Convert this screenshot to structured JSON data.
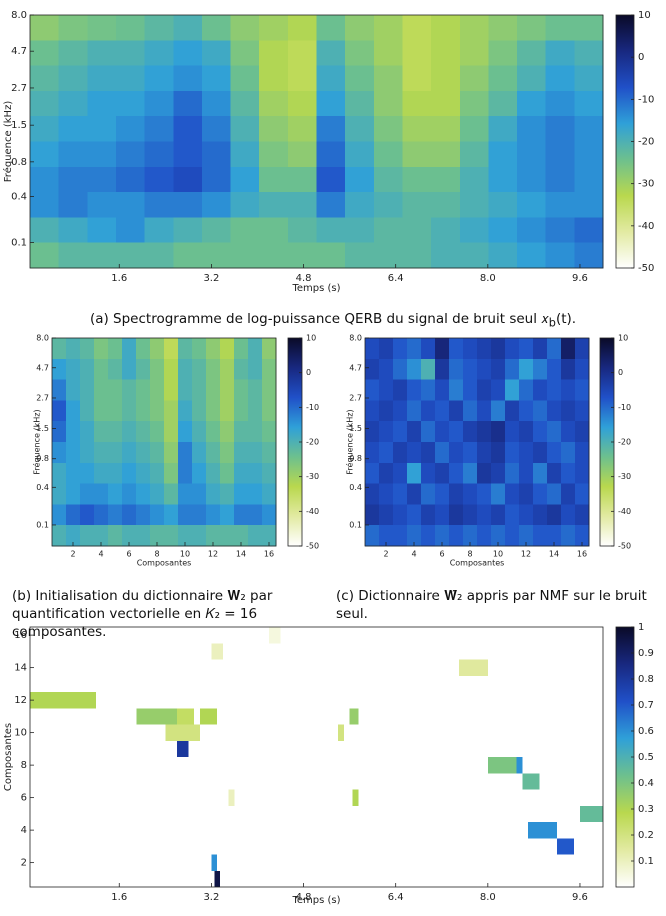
{
  "chart_data": [
    {
      "type": "heatmap",
      "xlabel": "Temps (s)",
      "ylabel": "Fréquence (kHz)",
      "yscale": "erb",
      "xlim": [
        0.05,
        10.0
      ],
      "ylim": [
        0,
        8
      ],
      "xticks": [
        1.6,
        3.2,
        4.8,
        6.4,
        {
          "value": 8,
          "label": "8.0"
        },
        9.6
      ],
      "yticks": [
        0.1,
        0.4,
        0.8,
        1.5,
        2.7,
        4.7,
        {
          "value": 8,
          "label": "8.0"
        }
      ],
      "clim": [
        -50,
        10
      ],
      "cticks": [
        10,
        0,
        -10,
        -20,
        -30,
        -40,
        -50
      ],
      "colormap": [
        "#ffffff",
        "#e2eaa2",
        "#b9d84e",
        "#6dc08e",
        "#2fa0d8",
        "#2050c8",
        "#182880",
        "#0a0a28"
      ],
      "caption": "(a) Spectrogramme de log-puissance QERB du signal de bruit seul 𝑥",
      "caption_sub": "b",
      "caption_tail": "(t).",
      "z": [
        [
          -28,
          -26,
          -25,
          -24,
          -22,
          -20,
          -24,
          -28,
          -30,
          -32,
          -24,
          -28,
          -30,
          -34,
          -32,
          -30,
          -28,
          -26,
          -24,
          -24
        ],
        [
          -24,
          -22,
          -20,
          -20,
          -18,
          -16,
          -18,
          -26,
          -32,
          -34,
          -20,
          -26,
          -30,
          -34,
          -32,
          -30,
          -26,
          -22,
          -18,
          -20
        ],
        [
          -22,
          -20,
          -18,
          -18,
          -16,
          -14,
          -16,
          -24,
          -32,
          -34,
          -18,
          -24,
          -28,
          -34,
          -32,
          -28,
          -24,
          -20,
          -16,
          -18
        ],
        [
          -20,
          -18,
          -16,
          -16,
          -14,
          -10,
          -14,
          -22,
          -30,
          -32,
          -16,
          -22,
          -28,
          -32,
          -32,
          -26,
          -22,
          -16,
          -14,
          -16
        ],
        [
          -18,
          -16,
          -16,
          -14,
          -12,
          -8,
          -12,
          -20,
          -28,
          -30,
          -12,
          -20,
          -26,
          -30,
          -30,
          -24,
          -18,
          -14,
          -12,
          -14
        ],
        [
          -16,
          -14,
          -14,
          -12,
          -10,
          -8,
          -10,
          -18,
          -26,
          -28,
          -10,
          -18,
          -24,
          -28,
          -28,
          -22,
          -16,
          -14,
          -12,
          -14
        ],
        [
          -14,
          -12,
          -12,
          -10,
          -8,
          -6,
          -10,
          -16,
          -24,
          -24,
          -8,
          -16,
          -22,
          -24,
          -24,
          -20,
          -16,
          -14,
          -12,
          -14
        ],
        [
          -14,
          -12,
          -14,
          -14,
          -12,
          -12,
          -14,
          -18,
          -20,
          -20,
          -12,
          -18,
          -20,
          -22,
          -22,
          -20,
          -18,
          -16,
          -14,
          -14
        ],
        [
          -20,
          -18,
          -16,
          -14,
          -18,
          -20,
          -22,
          -24,
          -24,
          -22,
          -20,
          -20,
          -22,
          -22,
          -20,
          -18,
          -16,
          -14,
          -12,
          -10
        ],
        [
          -24,
          -22,
          -22,
          -22,
          -22,
          -24,
          -24,
          -24,
          -24,
          -24,
          -24,
          -22,
          -22,
          -22,
          -20,
          -20,
          -18,
          -16,
          -14,
          -12
        ]
      ]
    },
    {
      "type": "heatmap",
      "xlabel": "Composantes",
      "ylabel": "Fréquence (kHz)",
      "yscale": "erb",
      "xlim": [
        0.5,
        16.5
      ],
      "ylim": [
        0,
        8
      ],
      "xticks": [
        2,
        4,
        6,
        8,
        10,
        12,
        14,
        16
      ],
      "yticks": [
        0.1,
        0.4,
        0.8,
        1.5,
        2.7,
        4.7,
        {
          "value": 8,
          "label": "8.0"
        }
      ],
      "clim": [
        -50,
        10
      ],
      "cticks": [
        10,
        0,
        -10,
        -20,
        -30,
        -40,
        -50
      ],
      "colormap": [
        "#ffffff",
        "#e2eaa2",
        "#b9d84e",
        "#6dc08e",
        "#2fa0d8",
        "#2050c8",
        "#182880",
        "#0a0a28"
      ],
      "caption": "(b) Initialisation du dictionnaire 𝐖₂ par quantification vectorielle en 𝐾₂ = 16 composantes.",
      "z": [
        [
          -22,
          -20,
          -22,
          -26,
          -24,
          -18,
          -24,
          -28,
          -34,
          -22,
          -24,
          -28,
          -32,
          -24,
          -20,
          -28
        ],
        [
          -16,
          -18,
          -20,
          -24,
          -22,
          -18,
          -22,
          -26,
          -32,
          -20,
          -22,
          -26,
          -30,
          -22,
          -20,
          -26
        ],
        [
          -12,
          -18,
          -20,
          -24,
          -24,
          -22,
          -24,
          -26,
          -32,
          -20,
          -22,
          -26,
          -30,
          -24,
          -22,
          -26
        ],
        [
          -8,
          -16,
          -20,
          -24,
          -24,
          -22,
          -24,
          -26,
          -30,
          -18,
          -22,
          -26,
          -30,
          -24,
          -22,
          -26
        ],
        [
          -10,
          -16,
          -18,
          -22,
          -22,
          -20,
          -22,
          -24,
          -30,
          -16,
          -20,
          -24,
          -28,
          -22,
          -22,
          -24
        ],
        [
          -14,
          -16,
          -18,
          -20,
          -20,
          -18,
          -20,
          -22,
          -28,
          -12,
          -18,
          -22,
          -26,
          -20,
          -20,
          -22
        ],
        [
          -18,
          -16,
          -16,
          -18,
          -18,
          -16,
          -18,
          -20,
          -26,
          -12,
          -16,
          -20,
          -24,
          -18,
          -18,
          -20
        ],
        [
          -18,
          -16,
          -14,
          -14,
          -16,
          -14,
          -16,
          -18,
          -22,
          -14,
          -14,
          -18,
          -20,
          -16,
          -16,
          -18
        ],
        [
          -14,
          -10,
          -8,
          -10,
          -12,
          -10,
          -12,
          -14,
          -16,
          -12,
          -12,
          -14,
          -16,
          -12,
          -12,
          -14
        ],
        [
          -20,
          -18,
          -20,
          -20,
          -22,
          -20,
          -20,
          -22,
          -22,
          -20,
          -20,
          -22,
          -22,
          -22,
          -20,
          -20
        ]
      ]
    },
    {
      "type": "heatmap",
      "xlabel": "Composantes",
      "ylabel": "Fréquence (kHz)",
      "yscale": "erb",
      "xlim": [
        0.5,
        16.5
      ],
      "ylim": [
        0,
        8
      ],
      "xticks": [
        2,
        4,
        6,
        8,
        10,
        12,
        14,
        16
      ],
      "yticks": [
        0.1,
        0.4,
        0.8,
        1.5,
        2.7,
        4.7,
        {
          "value": 8,
          "label": "8.0"
        }
      ],
      "clim": [
        -50,
        10
      ],
      "cticks": [
        10,
        0,
        -10,
        -20,
        -30,
        -40,
        -50
      ],
      "colormap": [
        "#ffffff",
        "#e2eaa2",
        "#b9d84e",
        "#6dc08e",
        "#2fa0d8",
        "#2050c8",
        "#182880",
        "#0a0a28"
      ],
      "caption": "(c) Dictionnaire 𝐖̃₂ appris par NMF sur le bruit seul.",
      "z": [
        [
          -6,
          -4,
          -8,
          -10,
          -6,
          2,
          -8,
          -6,
          -4,
          -2,
          -6,
          -8,
          -4,
          -10,
          4,
          -4
        ],
        [
          -4,
          -6,
          -10,
          -14,
          -20,
          -2,
          -10,
          -8,
          -6,
          -4,
          -10,
          -16,
          -12,
          -8,
          -2,
          -6
        ],
        [
          -8,
          -6,
          -4,
          -8,
          -10,
          -6,
          -12,
          -8,
          -4,
          -6,
          -16,
          -10,
          -6,
          -8,
          -6,
          -8
        ],
        [
          -6,
          -4,
          -6,
          -10,
          -6,
          -8,
          -4,
          -10,
          -6,
          -12,
          -4,
          -8,
          -10,
          -6,
          -4,
          -6
        ],
        [
          -4,
          -6,
          -8,
          -4,
          -10,
          -6,
          -8,
          -4,
          -2,
          0,
          -6,
          -4,
          -8,
          -10,
          -6,
          -4
        ],
        [
          -6,
          -8,
          -4,
          -6,
          -4,
          -10,
          -6,
          -8,
          -4,
          -2,
          -8,
          -6,
          -4,
          -8,
          -10,
          -6
        ],
        [
          -8,
          -4,
          -6,
          -16,
          -6,
          -4,
          -8,
          -12,
          -2,
          -4,
          -10,
          -6,
          -12,
          -4,
          -8,
          -6
        ],
        [
          -4,
          -6,
          -8,
          -4,
          -10,
          -8,
          -4,
          -6,
          -8,
          -12,
          -6,
          -4,
          -8,
          -10,
          -4,
          -8
        ],
        [
          -2,
          -4,
          -6,
          -8,
          -4,
          -6,
          -2,
          -4,
          -6,
          -4,
          -8,
          -6,
          -4,
          -2,
          -6,
          -4
        ],
        [
          -10,
          -8,
          -8,
          -10,
          -8,
          -10,
          -8,
          -10,
          -8,
          -10,
          -8,
          -10,
          -8,
          -8,
          -10,
          -8
        ]
      ]
    },
    {
      "type": "activation",
      "xlabel": "Temps (s)",
      "ylabel": "Composantes",
      "xlim": [
        0.05,
        10.0
      ],
      "ylim": [
        0.5,
        16.5
      ],
      "xticks": [
        1.6,
        3.2,
        4.8,
        6.4,
        {
          "value": 8,
          "label": "8.0"
        },
        9.6
      ],
      "yticks": [
        2,
        4,
        6,
        8,
        10,
        12,
        14,
        16
      ],
      "clim": [
        0,
        1
      ],
      "cticks": [
        1,
        0.9,
        0.8,
        0.7,
        0.6,
        0.5,
        0.4,
        0.3,
        0.2,
        0.1
      ],
      "colormap": [
        "#ffffff",
        "#e2eaa2",
        "#b9d84e",
        "#6dc08e",
        "#2fa0d8",
        "#2050c8",
        "#182880",
        "#0a0a28"
      ],
      "cells": [
        [
          12,
          0.05,
          1.2,
          0.3
        ],
        [
          11,
          1.9,
          2.6,
          0.35
        ],
        [
          11,
          2.6,
          2.9,
          0.25
        ],
        [
          11,
          3.0,
          3.3,
          0.3
        ],
        [
          10,
          2.4,
          3.0,
          0.2
        ],
        [
          9,
          2.6,
          2.8,
          0.8
        ],
        [
          1,
          3.25,
          3.35,
          0.95
        ],
        [
          2,
          3.2,
          3.3,
          0.6
        ],
        [
          8,
          8.0,
          8.5,
          0.4
        ],
        [
          8,
          8.5,
          8.6,
          0.6
        ],
        [
          7,
          8.6,
          8.9,
          0.45
        ],
        [
          4,
          8.7,
          9.2,
          0.6
        ],
        [
          3,
          9.2,
          9.5,
          0.7
        ],
        [
          5,
          9.6,
          10.0,
          0.45
        ],
        [
          6,
          5.65,
          5.75,
          0.3
        ],
        [
          11,
          5.6,
          5.75,
          0.35
        ],
        [
          15,
          3.2,
          3.4,
          0.1
        ],
        [
          14,
          7.5,
          8.0,
          0.15
        ],
        [
          16,
          4.2,
          4.4,
          0.05
        ],
        [
          10,
          5.4,
          5.5,
          0.2
        ],
        [
          6,
          3.5,
          3.6,
          0.1
        ]
      ]
    }
  ]
}
